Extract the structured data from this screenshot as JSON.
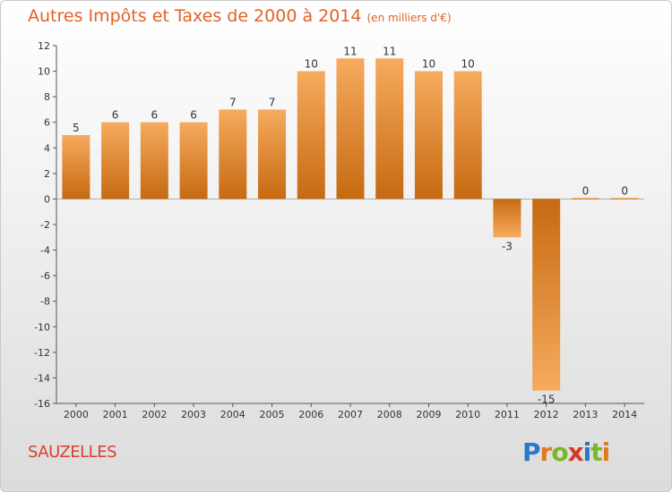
{
  "title": "Autres Impôts et Taxes de 2000 à 2014",
  "unit_note": "(en milliers d'€)",
  "commune": "SAUZELLES",
  "logo": {
    "text": "Proxiti",
    "letter_colors": [
      "#2a78c8",
      "#e07a1c",
      "#79b72a",
      "#d9362b",
      "#2a78c8",
      "#79b72a",
      "#e07a1c"
    ]
  },
  "colors": {
    "title": "#e0632a",
    "bar_light": "#f6ab5e",
    "bar_dark": "#c66a12",
    "commune": "#d9412a"
  },
  "chart_data": {
    "type": "bar",
    "categories": [
      "2000",
      "2001",
      "2002",
      "2003",
      "2004",
      "2005",
      "2006",
      "2007",
      "2008",
      "2009",
      "2010",
      "2011",
      "2012",
      "2013",
      "2014"
    ],
    "values": [
      5,
      6,
      6,
      6,
      7,
      7,
      10,
      11,
      11,
      10,
      10,
      -3,
      -15,
      0,
      0
    ],
    "value_labels": [
      "5",
      "6",
      "6",
      "6",
      "7",
      "7",
      "10",
      "11",
      "11",
      "10",
      "10",
      "-3",
      "-15",
      "0",
      "0"
    ],
    "yticks": [
      12,
      10,
      8,
      6,
      4,
      2,
      0,
      -2,
      -4,
      -6,
      -8,
      -10,
      -12,
      -14,
      -16
    ],
    "ylim": [
      -16,
      12
    ],
    "grid": false,
    "title": "Autres Impôts et Taxes de 2000 à 2014",
    "xlabel": "",
    "ylabel": ""
  }
}
